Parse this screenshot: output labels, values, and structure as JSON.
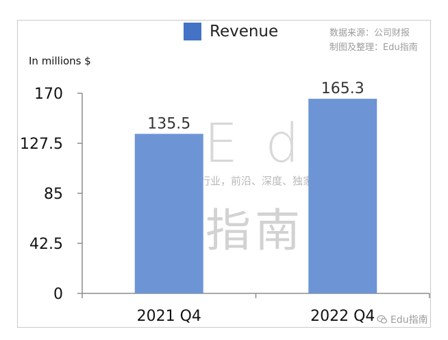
{
  "chart_data": {
    "type": "bar",
    "categories": [
      "2021 Q4",
      "2022 Q4"
    ],
    "series": [
      {
        "name": "Revenue",
        "values": [
          135.5,
          165.3
        ]
      }
    ],
    "value_labels": [
      "135.5",
      "165.3"
    ],
    "title": "",
    "xlabel": "",
    "ylabel": "In millions $",
    "ylim": [
      0,
      170
    ],
    "yticks": [
      "170",
      "127.5",
      "85",
      "42.5",
      "0"
    ],
    "ytick_values": [
      170,
      127.5,
      85,
      42.5,
      0
    ],
    "grid": false,
    "legend_position": "top",
    "bar_color": "#6d95d6",
    "legend_color": "#4472c4"
  },
  "source": {
    "line1": "数据来源：公司财报",
    "line2": "制图及整理：Edu指南"
  },
  "watermark": {
    "main": "Edu",
    "sub": "教育行业，前沿、深度、独家",
    "zh": "指南"
  },
  "credit": {
    "text": "Edu指南",
    "icon": "wechat-icon"
  }
}
